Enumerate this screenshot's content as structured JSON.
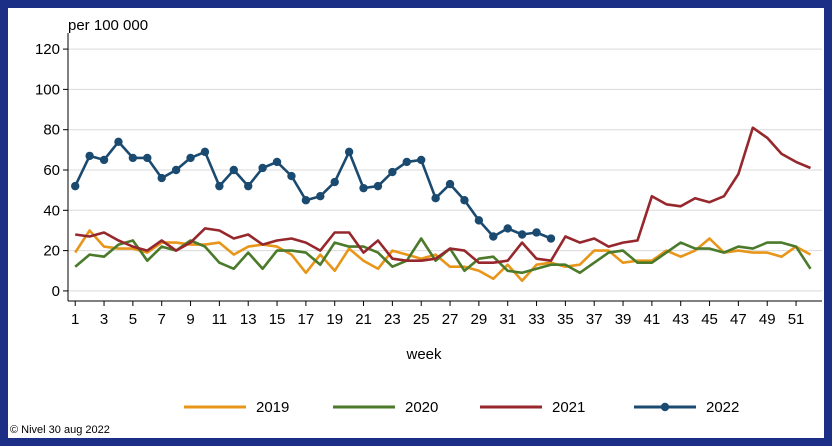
{
  "chart_data": {
    "type": "line",
    "ylabel": "per 100 000",
    "xlabel": "week",
    "ylim": [
      -5,
      125
    ],
    "yticks": [
      0,
      20,
      40,
      60,
      80,
      100,
      120
    ],
    "xlim": [
      0.5,
      52.8
    ],
    "xticks": [
      1,
      3,
      5,
      7,
      9,
      11,
      13,
      15,
      17,
      19,
      21,
      23,
      25,
      27,
      29,
      31,
      33,
      35,
      37,
      39,
      41,
      43,
      45,
      47,
      49,
      51
    ],
    "legend_position": "bottom",
    "credit": "© Nivel 30 aug 2022",
    "series": [
      {
        "name": "2019",
        "color": "#e8961a",
        "markers": false,
        "x": [
          1,
          2,
          3,
          4,
          5,
          6,
          7,
          8,
          9,
          10,
          11,
          12,
          13,
          14,
          15,
          16,
          17,
          18,
          19,
          20,
          21,
          22,
          23,
          24,
          25,
          26,
          27,
          28,
          29,
          30,
          31,
          32,
          33,
          34,
          35,
          36,
          37,
          38,
          39,
          40,
          41,
          42,
          43,
          44,
          45,
          46,
          47,
          48,
          49,
          50,
          51,
          52
        ],
        "values": [
          19,
          30,
          22,
          21,
          21,
          19,
          24,
          24,
          23,
          23,
          24,
          18,
          22,
          23,
          22,
          18,
          9,
          18,
          10,
          21,
          15,
          11,
          20,
          18,
          16,
          18,
          12,
          12,
          10,
          6,
          13,
          5,
          13,
          14,
          12,
          13,
          20,
          20,
          14,
          15,
          15,
          20,
          17,
          20,
          26,
          19,
          20,
          19,
          19,
          17,
          22,
          18
        ]
      },
      {
        "name": "2020",
        "color": "#4a7a2a",
        "markers": false,
        "x": [
          1,
          2,
          3,
          4,
          5,
          6,
          7,
          8,
          9,
          10,
          11,
          12,
          13,
          14,
          15,
          16,
          17,
          18,
          19,
          20,
          21,
          22,
          23,
          24,
          25,
          26,
          27,
          28,
          29,
          30,
          31,
          32,
          33,
          34,
          35,
          36,
          37,
          38,
          39,
          40,
          41,
          42,
          43,
          44,
          45,
          46,
          47,
          48,
          49,
          50,
          51,
          52
        ],
        "values": [
          12,
          18,
          17,
          23,
          25,
          15,
          22,
          20,
          25,
          22,
          14,
          11,
          19,
          11,
          20,
          20,
          19,
          13,
          24,
          22,
          22,
          19,
          12,
          15,
          26,
          15,
          21,
          10,
          16,
          17,
          10,
          9,
          11,
          13,
          13,
          9,
          14,
          19,
          20,
          14,
          14,
          19,
          24,
          21,
          21,
          19,
          22,
          21,
          24,
          24,
          22,
          11
        ]
      },
      {
        "name": "2021",
        "color": "#96282d",
        "markers": false,
        "x": [
          1,
          2,
          3,
          4,
          5,
          6,
          7,
          8,
          9,
          10,
          11,
          12,
          13,
          14,
          15,
          16,
          17,
          18,
          19,
          20,
          21,
          22,
          23,
          24,
          25,
          26,
          27,
          28,
          29,
          30,
          31,
          32,
          33,
          34,
          35,
          36,
          37,
          38,
          39,
          40,
          41,
          42,
          43,
          44,
          45,
          46,
          47,
          48,
          49,
          50,
          51,
          52
        ],
        "values": [
          28,
          27,
          29,
          25,
          22,
          20,
          25,
          20,
          24,
          31,
          30,
          26,
          28,
          23,
          25,
          26,
          24,
          20,
          29,
          29,
          19,
          25,
          16,
          15,
          15,
          16,
          21,
          20,
          14,
          14,
          15,
          24,
          16,
          15,
          27,
          24,
          26,
          22,
          24,
          25,
          47,
          43,
          42,
          46,
          44,
          47,
          58,
          81,
          76,
          68,
          64,
          61
        ]
      },
      {
        "name": "2022",
        "color": "#1b4a70",
        "markers": true,
        "x": [
          1,
          2,
          3,
          4,
          5,
          6,
          7,
          8,
          9,
          10,
          11,
          12,
          13,
          14,
          15,
          16,
          17,
          18,
          19,
          20,
          21,
          22,
          23,
          24,
          25,
          26,
          27,
          28,
          29,
          30,
          31,
          32,
          33,
          34
        ],
        "values": [
          52,
          67,
          65,
          74,
          66,
          66,
          56,
          60,
          66,
          69,
          52,
          60,
          52,
          61,
          64,
          57,
          45,
          47,
          54,
          69,
          51,
          52,
          59,
          64,
          65,
          46,
          53,
          45,
          35,
          27,
          31,
          28,
          29,
          26
        ]
      }
    ]
  }
}
